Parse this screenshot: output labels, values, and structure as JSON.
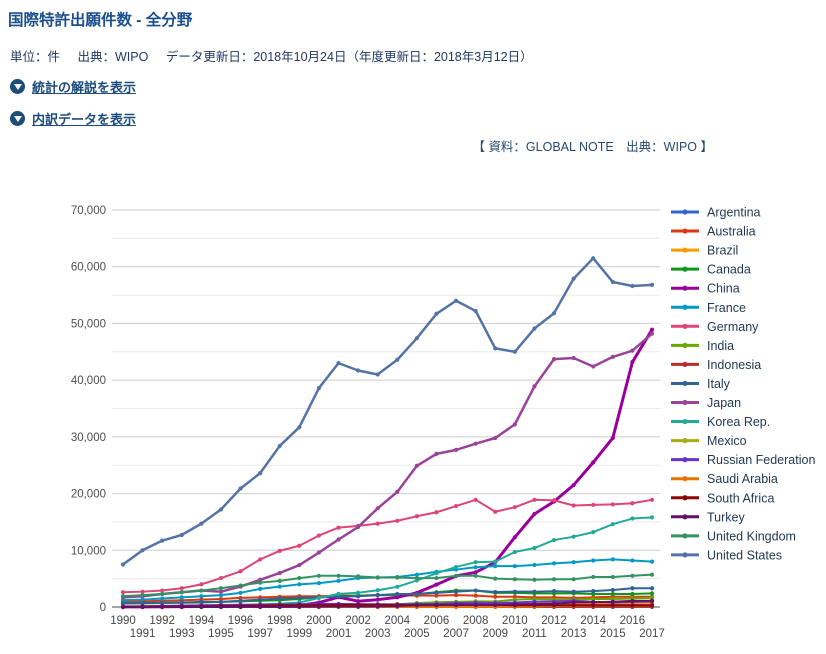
{
  "header": {
    "title": "国際特許出願件数 - 全分野",
    "meta": {
      "unit": "単位：件",
      "source": "出典：WIPO",
      "updated": "データ更新日：2018年10月24日（年度更新日：2018年3月12日）"
    },
    "links": [
      {
        "label": "統計の解説を表示"
      },
      {
        "label": "内訳データを表示"
      }
    ],
    "source_note": "【 資料：GLOBAL NOTE　出典：WIPO 】"
  },
  "chart_data": {
    "type": "line",
    "title": "",
    "xlabel": "",
    "ylabel": "",
    "grid": true,
    "legend_position": "right",
    "ylim": [
      0,
      70000
    ],
    "y_major_step": 10000,
    "y_minor_step": 5000,
    "y_ticks": [
      "0",
      "10,000",
      "20,000",
      "30,000",
      "40,000",
      "50,000",
      "60,000",
      "70,000"
    ],
    "x": [
      1990,
      1991,
      1992,
      1993,
      1994,
      1995,
      1996,
      1997,
      1998,
      1999,
      2000,
      2001,
      2002,
      2003,
      2004,
      2005,
      2006,
      2007,
      2008,
      2009,
      2010,
      2011,
      2012,
      2013,
      2014,
      2015,
      2016,
      2017
    ],
    "axis_text_color": "#4f4f4f",
    "legend_text_color": "#233a54",
    "series": [
      {
        "name": "Argentina",
        "color": "#3366CC",
        "values": [
          20,
          20,
          20,
          25,
          25,
          25,
          25,
          30,
          30,
          30,
          30,
          35,
          30,
          30,
          30,
          30,
          30,
          35,
          30,
          30,
          30,
          30,
          25,
          25,
          25,
          25,
          20,
          20
        ]
      },
      {
        "name": "Australia",
        "color": "#DC3912",
        "values": [
          900,
          1000,
          1100,
          1200,
          1300,
          1400,
          1600,
          1700,
          1800,
          1900,
          1900,
          2000,
          2000,
          2100,
          2100,
          2000,
          2000,
          2100,
          2000,
          1800,
          1800,
          1700,
          1700,
          1600,
          1700,
          1800,
          1800,
          1800
        ]
      },
      {
        "name": "Brazil",
        "color": "#FF9900",
        "values": [
          30,
          40,
          50,
          60,
          70,
          80,
          90,
          110,
          130,
          160,
          180,
          200,
          200,
          220,
          280,
          280,
          330,
          400,
          450,
          480,
          490,
          570,
          600,
          660,
          610,
          550,
          570,
          590
        ]
      },
      {
        "name": "Canada",
        "color": "#109618",
        "values": [
          600,
          650,
          700,
          750,
          800,
          900,
          1000,
          1100,
          1200,
          1400,
          1700,
          1900,
          2000,
          2100,
          2100,
          2300,
          2600,
          2900,
          2900,
          2500,
          2500,
          2400,
          2400,
          2400,
          2300,
          2300,
          2300,
          2400
        ]
      },
      {
        "name": "China",
        "color": "#990099",
        "values": [
          10,
          20,
          40,
          60,
          80,
          100,
          100,
          170,
          300,
          280,
          780,
          1730,
          1020,
          1290,
          1710,
          2500,
          3940,
          5460,
          6120,
          7900,
          12300,
          16400,
          18600,
          21500,
          25500,
          29800,
          43200,
          48900
        ]
      },
      {
        "name": "France",
        "color": "#0099C6",
        "values": [
          1200,
          1300,
          1500,
          1700,
          1900,
          2100,
          2500,
          3200,
          3600,
          4000,
          4200,
          4600,
          5100,
          5200,
          5300,
          5700,
          6200,
          6600,
          7000,
          7200,
          7200,
          7400,
          7700,
          7900,
          8200,
          8400,
          8200,
          8000
        ]
      },
      {
        "name": "Germany",
        "color": "#DD4477",
        "values": [
          2600,
          2700,
          2900,
          3300,
          4000,
          5100,
          6300,
          8400,
          9900,
          10800,
          12600,
          14000,
          14300,
          14700,
          15200,
          16000,
          16700,
          17800,
          18900,
          16800,
          17600,
          18900,
          18800,
          17900,
          18000,
          18100,
          18300,
          18900
        ]
      },
      {
        "name": "India",
        "color": "#66AA00",
        "values": [
          10,
          10,
          15,
          20,
          30,
          50,
          80,
          100,
          120,
          150,
          190,
          230,
          280,
          380,
          480,
          680,
          830,
          900,
          1000,
          960,
          1300,
          1400,
          1300,
          1300,
          1400,
          1400,
          1500,
          1600
        ]
      },
      {
        "name": "Indonesia",
        "color": "#B82E2E",
        "values": [
          2,
          2,
          3,
          3,
          4,
          4,
          5,
          5,
          5,
          6,
          6,
          8,
          8,
          8,
          9,
          10,
          10,
          12,
          12,
          12,
          14,
          14,
          15,
          16,
          16,
          18,
          18,
          20
        ]
      },
      {
        "name": "Italy",
        "color": "#316395",
        "values": [
          650,
          700,
          750,
          800,
          900,
          900,
          1100,
          1300,
          1500,
          1600,
          1700,
          1800,
          1900,
          2100,
          2300,
          2300,
          2500,
          2700,
          2900,
          2650,
          2700,
          2700,
          2800,
          2700,
          2800,
          3000,
          3300,
          3300
        ]
      },
      {
        "name": "Japan",
        "color": "#994499",
        "values": [
          1700,
          1900,
          2300,
          2600,
          2900,
          2700,
          3600,
          4800,
          6000,
          7400,
          9600,
          11900,
          14100,
          17400,
          20300,
          24900,
          27000,
          27700,
          28800,
          29800,
          32200,
          38900,
          43700,
          43900,
          42400,
          44100,
          45200,
          48200
        ]
      },
      {
        "name": "Korea Rep.",
        "color": "#22AA99",
        "values": [
          20,
          40,
          70,
          110,
          160,
          200,
          290,
          470,
          570,
          800,
          1580,
          2320,
          2520,
          2950,
          3560,
          4690,
          5940,
          7060,
          7900,
          8000,
          9700,
          10400,
          11800,
          12400,
          13200,
          14600,
          15600,
          15800
        ]
      },
      {
        "name": "Mexico",
        "color": "#AAAA11",
        "values": [
          5,
          5,
          10,
          10,
          15,
          20,
          25,
          30,
          35,
          40,
          60,
          70,
          90,
          110,
          130,
          140,
          170,
          180,
          210,
          190,
          200,
          230,
          250,
          270,
          290,
          300,
          300,
          300
        ]
      },
      {
        "name": "Russian Federation",
        "color": "#6633CC",
        "values": [
          50,
          100,
          200,
          250,
          300,
          350,
          400,
          420,
          440,
          480,
          530,
          540,
          500,
          480,
          460,
          500,
          560,
          680,
          760,
          700,
          800,
          950,
          950,
          1100,
          900,
          800,
          900,
          940
        ]
      },
      {
        "name": "Saudi Arabia",
        "color": "#E67300",
        "values": [
          0,
          0,
          0,
          0,
          0,
          0,
          0,
          0,
          0,
          0,
          0,
          0,
          0,
          0,
          0,
          5,
          5,
          10,
          15,
          20,
          40,
          80,
          190,
          270,
          290,
          330,
          360,
          360
        ]
      },
      {
        "name": "South Africa",
        "color": "#8B0707",
        "values": [
          50,
          60,
          80,
          100,
          120,
          150,
          180,
          230,
          280,
          310,
          340,
          380,
          370,
          340,
          380,
          340,
          330,
          390,
          380,
          360,
          310,
          300,
          310,
          320,
          300,
          310,
          300,
          290
        ]
      },
      {
        "name": "Turkey",
        "color": "#651067",
        "values": [
          0,
          0,
          5,
          5,
          10,
          10,
          15,
          20,
          30,
          40,
          60,
          80,
          90,
          110,
          170,
          300,
          360,
          360,
          390,
          370,
          480,
          540,
          580,
          810,
          830,
          930,
          1070,
          1100
        ]
      },
      {
        "name": "United Kingdom",
        "color": "#329262",
        "values": [
          1900,
          2100,
          2300,
          2600,
          2900,
          3300,
          3800,
          4300,
          4600,
          5100,
          5500,
          5500,
          5400,
          5200,
          5200,
          5100,
          5100,
          5500,
          5500,
          5000,
          4900,
          4800,
          4900,
          4900,
          5300,
          5300,
          5500,
          5700
        ]
      },
      {
        "name": "United States",
        "color": "#5574A6",
        "values": [
          7500,
          10000,
          11700,
          12700,
          14700,
          17200,
          20900,
          23600,
          28400,
          31700,
          38600,
          43000,
          41700,
          41000,
          43600,
          47400,
          51700,
          54000,
          52200,
          45600,
          45000,
          49100,
          51800,
          57900,
          61500,
          57300,
          56600,
          56800
        ]
      }
    ]
  }
}
